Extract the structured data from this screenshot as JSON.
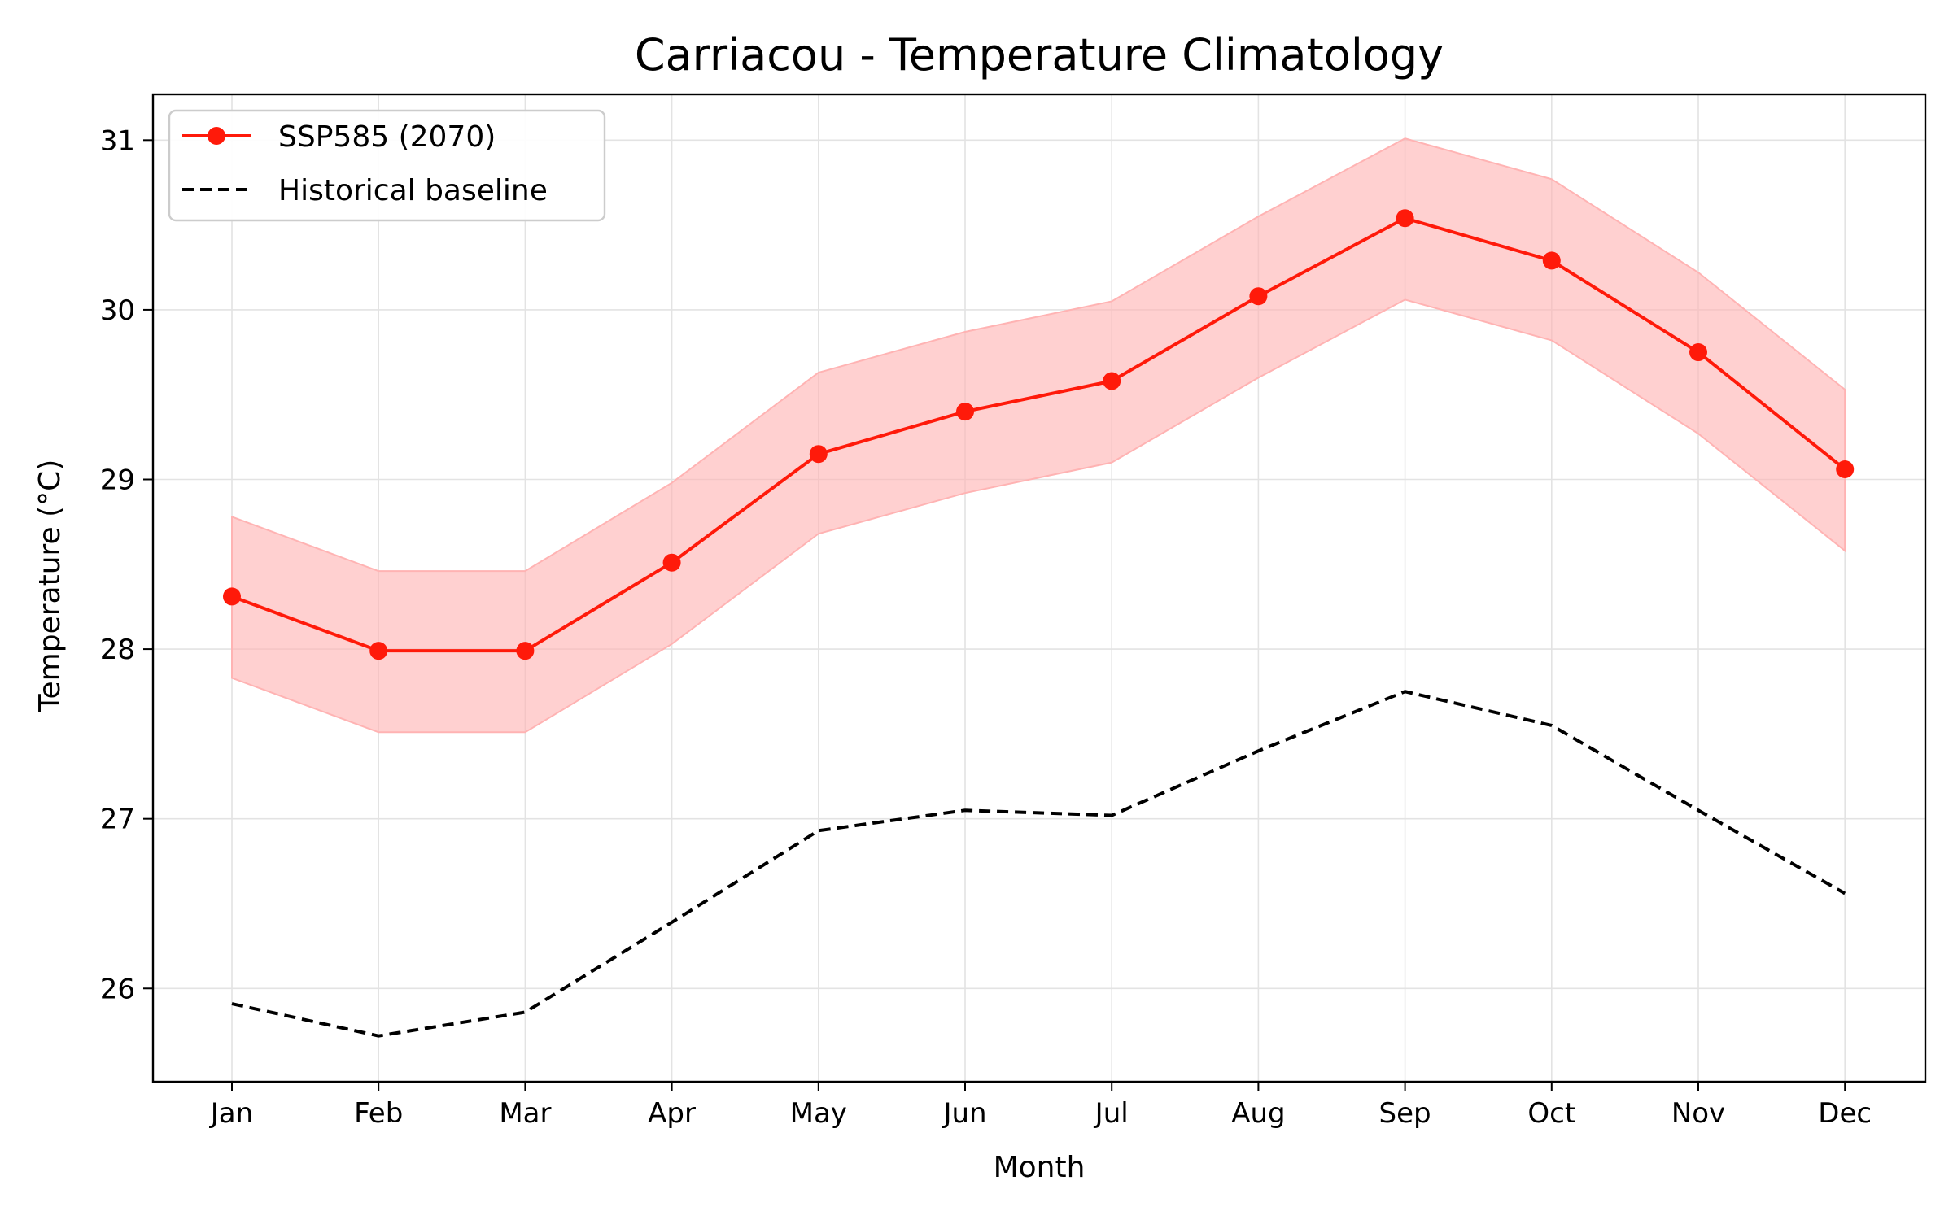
{
  "chart_data": {
    "type": "line",
    "title": "Carriacou - Temperature Climatology",
    "xlabel": "Month",
    "ylabel": "Temperature (°C)",
    "categories": [
      "Jan",
      "Feb",
      "Mar",
      "Apr",
      "May",
      "Jun",
      "Jul",
      "Aug",
      "Sep",
      "Oct",
      "Nov",
      "Dec"
    ],
    "ylim": [
      25.45,
      31.27
    ],
    "yticks": [
      26,
      27,
      28,
      29,
      30,
      31
    ],
    "grid": true,
    "legend_position": "top-left",
    "series": [
      {
        "name": "SSP585 (2070)",
        "style": "solid-line-with-markers",
        "color": "#ff1a0a",
        "values": [
          28.31,
          27.99,
          27.99,
          28.51,
          29.15,
          29.4,
          29.58,
          30.08,
          30.54,
          30.29,
          29.75,
          29.06
        ],
        "band_upper": [
          28.78,
          28.46,
          28.46,
          28.98,
          29.63,
          29.87,
          30.05,
          30.55,
          31.01,
          30.77,
          30.22,
          29.53
        ],
        "band_lower": [
          27.83,
          27.51,
          27.51,
          28.03,
          28.68,
          28.92,
          29.1,
          29.6,
          30.06,
          29.82,
          29.27,
          28.58
        ],
        "band_color": "#ffb3b3"
      },
      {
        "name": "Historical baseline",
        "style": "dashed-line",
        "color": "#000000",
        "values": [
          25.91,
          25.72,
          25.86,
          26.39,
          26.93,
          27.05,
          27.02,
          27.4,
          27.75,
          27.55,
          27.05,
          26.56
        ]
      }
    ]
  }
}
